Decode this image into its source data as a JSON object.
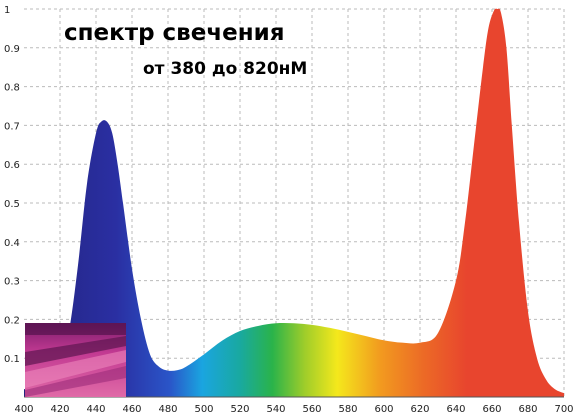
{
  "chart_data": {
    "type": "area",
    "title": "спектр свечения",
    "subtitle": "от 380 до 820нМ",
    "xlabel": "",
    "ylabel": "",
    "xlim": [
      400,
      700
    ],
    "ylim": [
      0,
      1.0
    ],
    "x_ticks": [
      400,
      420,
      440,
      460,
      480,
      500,
      520,
      540,
      560,
      580,
      600,
      620,
      640,
      660,
      680,
      700
    ],
    "y_ticks": [
      0.1,
      0.2,
      0.3,
      0.4,
      0.5,
      0.6,
      0.7,
      0.8,
      0.9,
      1
    ],
    "grid": "dashed",
    "fill": "visible spectrum gradient",
    "series": [
      {
        "x": [
          400,
          410,
          420,
          425,
          430,
          435,
          440,
          443,
          446,
          449,
          452,
          455,
          460,
          465,
          470,
          475,
          480,
          485,
          490,
          500,
          510,
          520,
          530,
          540,
          550,
          560,
          570,
          580,
          590,
          600,
          610,
          620,
          630,
          640,
          645,
          650,
          655,
          658,
          661,
          663,
          665,
          668,
          671,
          675,
          680,
          685,
          690,
          695,
          700
        ],
        "y": [
          0.02,
          0.03,
          0.08,
          0.17,
          0.34,
          0.55,
          0.68,
          0.71,
          0.71,
          0.68,
          0.6,
          0.5,
          0.33,
          0.2,
          0.11,
          0.078,
          0.068,
          0.069,
          0.078,
          0.11,
          0.145,
          0.17,
          0.183,
          0.19,
          0.19,
          0.186,
          0.178,
          0.168,
          0.157,
          0.146,
          0.14,
          0.14,
          0.165,
          0.3,
          0.45,
          0.65,
          0.85,
          0.95,
          0.995,
          1.0,
          0.99,
          0.9,
          0.7,
          0.45,
          0.22,
          0.1,
          0.045,
          0.02,
          0.01
        ]
      }
    ]
  },
  "spectrum_colors": {
    "violet": "#23237e",
    "blue": "#2a2fa2",
    "cyan": "#1aa5e0",
    "green": "#2ab34a",
    "yellow": "#f4e81c",
    "orange": "#f29a1f",
    "red": "#e8452e"
  },
  "inset_photo": "greenhouse-plants-under-purple-light"
}
